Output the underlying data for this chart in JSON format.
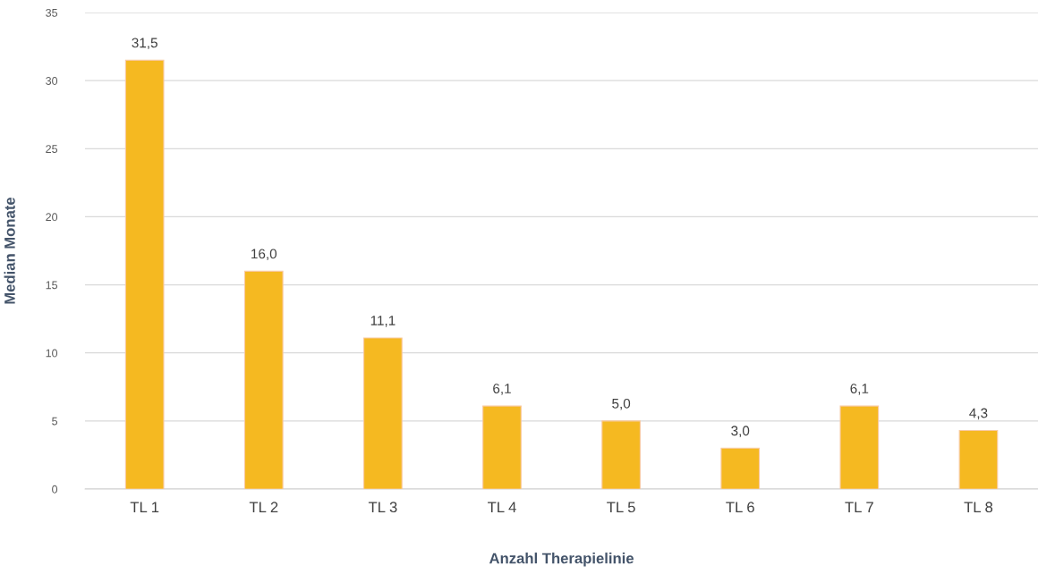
{
  "chart_data": {
    "type": "bar",
    "xlabel": "Anzahl Therapielinie",
    "ylabel": "Median Monate",
    "categories": [
      "TL 1",
      "TL 2",
      "TL 3",
      "TL 4",
      "TL 5",
      "TL 6",
      "TL 7",
      "TL 8"
    ],
    "values": [
      31.5,
      16.0,
      11.1,
      6.1,
      5.0,
      3.0,
      6.1,
      4.3
    ],
    "value_labels": [
      "31,5",
      "16,0",
      "11,1",
      "6,1",
      "5,0",
      "3,0",
      "6,1",
      "4,3"
    ],
    "color": "#f5b921",
    "ylim": [
      0,
      35
    ],
    "yticks": [
      0,
      5,
      10,
      15,
      20,
      25,
      30,
      35
    ],
    "grid": "y"
  }
}
